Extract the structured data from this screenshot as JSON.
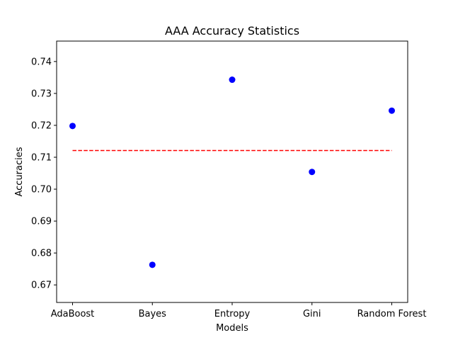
{
  "chart_data": {
    "type": "scatter",
    "title": "AAA Accuracy Statistics",
    "xlabel": "Models",
    "ylabel": "Accuracies",
    "categories": [
      "AdaBoost",
      "Bayes",
      "Entropy",
      "Gini",
      "Random Forest"
    ],
    "series": [
      {
        "values": [
          0.7198,
          0.6763,
          0.7343,
          0.7054,
          0.7246
        ],
        "color": "#0000ff",
        "marker": "circle"
      }
    ],
    "reference_line": {
      "value": 0.7121,
      "color": "#ff0000",
      "style": "dashed",
      "x_range": [
        "AdaBoost",
        "Random Forest"
      ]
    },
    "ylim": [
      0.6645,
      0.7464
    ],
    "yticks": [
      "0.67",
      "0.68",
      "0.69",
      "0.70",
      "0.71",
      "0.72",
      "0.73",
      "0.74"
    ],
    "grid": false,
    "legend": "none"
  }
}
